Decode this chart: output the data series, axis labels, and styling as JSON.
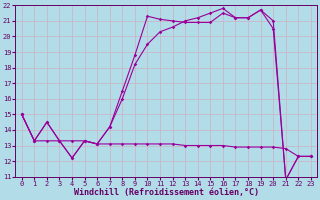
{
  "xlabel": "Windchill (Refroidissement éolien,°C)",
  "xlim": [
    -0.5,
    23.5
  ],
  "ylim": [
    11,
    22
  ],
  "xticks": [
    0,
    1,
    2,
    3,
    4,
    5,
    6,
    7,
    8,
    9,
    10,
    11,
    12,
    13,
    14,
    15,
    16,
    17,
    18,
    19,
    20,
    21,
    22,
    23
  ],
  "yticks": [
    11,
    12,
    13,
    14,
    15,
    16,
    17,
    18,
    19,
    20,
    21,
    22
  ],
  "background_color": "#b2dce8",
  "grid_color": "#c8b8c8",
  "line_color": "#990099",
  "line1_y": [
    15.0,
    13.3,
    13.3,
    13.3,
    13.3,
    13.3,
    13.1,
    13.1,
    13.1,
    13.1,
    13.1,
    13.1,
    13.1,
    13.0,
    13.0,
    13.0,
    13.0,
    12.9,
    12.9,
    12.9,
    12.9,
    12.8,
    12.3,
    12.3
  ],
  "line2_y": [
    15.0,
    13.3,
    14.5,
    13.3,
    12.2,
    13.3,
    13.1,
    14.2,
    16.5,
    18.8,
    21.3,
    21.1,
    21.0,
    20.9,
    20.9,
    20.9,
    21.5,
    21.2,
    21.2,
    21.7,
    20.5,
    10.8,
    12.3,
    12.3
  ],
  "line3_y": [
    15.0,
    13.3,
    14.5,
    13.3,
    12.2,
    13.3,
    13.1,
    14.2,
    16.0,
    18.2,
    19.5,
    20.3,
    20.6,
    21.0,
    21.2,
    21.5,
    21.8,
    21.2,
    21.2,
    21.7,
    21.0,
    10.8,
    12.3,
    12.3
  ],
  "markersize": 1.8,
  "linewidth": 0.8,
  "font_color": "#660066",
  "tick_fontsize": 5.0,
  "xlabel_fontsize": 6.0
}
